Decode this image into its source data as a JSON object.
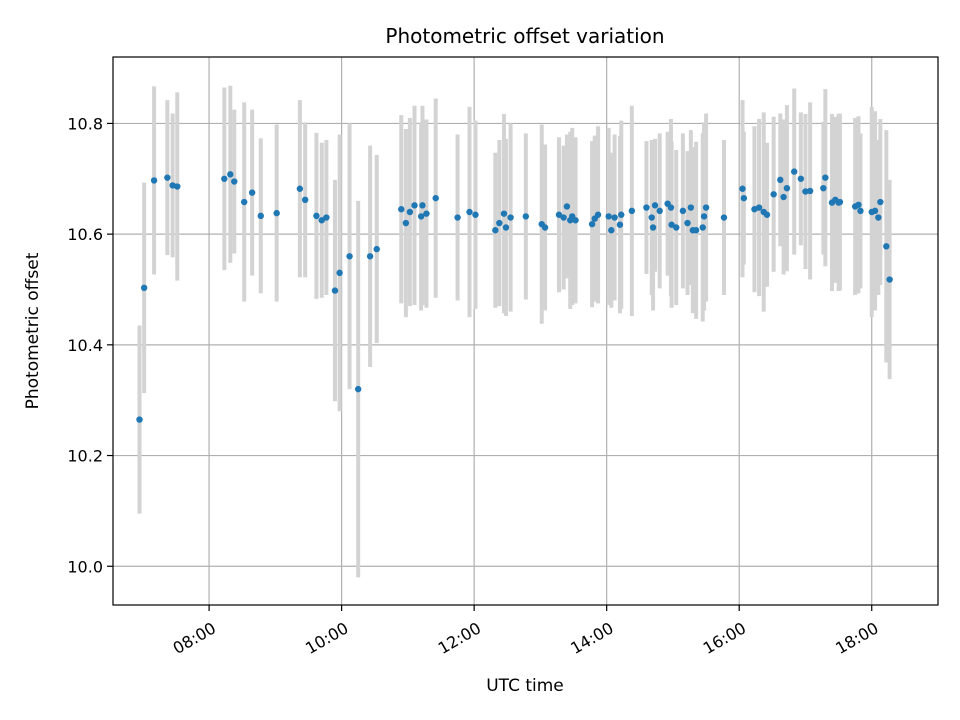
{
  "chart_data": {
    "type": "scatter",
    "title": "Photometric offset variation",
    "xlabel": "UTC time",
    "ylabel": "Photometric offset",
    "x_unit": "hours (UTC)",
    "xlim": [
      6.55,
      19.0
    ],
    "ylim": [
      9.93,
      10.92
    ],
    "grid": true,
    "x_ticks": [
      {
        "value": 8,
        "label": "08:00"
      },
      {
        "value": 10,
        "label": "10:00"
      },
      {
        "value": 12,
        "label": "12:00"
      },
      {
        "value": 14,
        "label": "14:00"
      },
      {
        "value": 16,
        "label": "16:00"
      },
      {
        "value": 18,
        "label": "18:00"
      }
    ],
    "y_ticks": [
      {
        "value": 10.0,
        "label": "10.0"
      },
      {
        "value": 10.2,
        "label": "10.2"
      },
      {
        "value": 10.4,
        "label": "10.4"
      },
      {
        "value": 10.6,
        "label": "10.6"
      },
      {
        "value": 10.8,
        "label": "10.8"
      }
    ],
    "colors": {
      "point": "#1f77b4",
      "errorbar": "#d3d3d3",
      "grid": "#b0b0b0"
    },
    "points": [
      [
        6.95,
        10.265,
        0.17
      ],
      [
        7.02,
        10.503,
        0.19
      ],
      [
        7.17,
        10.697,
        0.17
      ],
      [
        7.37,
        10.702,
        0.14
      ],
      [
        7.45,
        10.688,
        0.13
      ],
      [
        7.52,
        10.686,
        0.17
      ],
      [
        8.23,
        10.7,
        0.165
      ],
      [
        8.32,
        10.708,
        0.16
      ],
      [
        8.38,
        10.695,
        0.13
      ],
      [
        8.53,
        10.658,
        0.18
      ],
      [
        8.65,
        10.675,
        0.15
      ],
      [
        8.78,
        10.633,
        0.14
      ],
      [
        9.02,
        10.638,
        0.16
      ],
      [
        9.37,
        10.682,
        0.16
      ],
      [
        9.45,
        10.662,
        0.14
      ],
      [
        9.62,
        10.633,
        0.15
      ],
      [
        9.7,
        10.625,
        0.14
      ],
      [
        9.77,
        10.63,
        0.14
      ],
      [
        9.9,
        10.498,
        0.2
      ],
      [
        9.97,
        10.53,
        0.25
      ],
      [
        10.12,
        10.56,
        0.24
      ],
      [
        10.25,
        10.32,
        0.34
      ],
      [
        10.43,
        10.56,
        0.2
      ],
      [
        10.53,
        10.573,
        0.17
      ],
      [
        10.9,
        10.645,
        0.17
      ],
      [
        10.97,
        10.62,
        0.17
      ],
      [
        11.03,
        10.64,
        0.17
      ],
      [
        11.1,
        10.652,
        0.18
      ],
      [
        11.22,
        10.652,
        0.18
      ],
      [
        11.2,
        10.632,
        0.17
      ],
      [
        11.28,
        10.637,
        0.17
      ],
      [
        11.42,
        10.665,
        0.18
      ],
      [
        11.75,
        10.63,
        0.15
      ],
      [
        11.93,
        10.64,
        0.19
      ],
      [
        12.02,
        10.635,
        0.17
      ],
      [
        12.32,
        10.607,
        0.14
      ],
      [
        12.38,
        10.62,
        0.15
      ],
      [
        12.45,
        10.637,
        0.18
      ],
      [
        12.48,
        10.612,
        0.16
      ],
      [
        12.55,
        10.63,
        0.17
      ],
      [
        12.78,
        10.632,
        0.15
      ],
      [
        13.02,
        10.618,
        0.18
      ],
      [
        13.07,
        10.612,
        0.15
      ],
      [
        13.28,
        10.635,
        0.14
      ],
      [
        13.35,
        10.63,
        0.13
      ],
      [
        13.4,
        10.65,
        0.13
      ],
      [
        13.45,
        10.625,
        0.16
      ],
      [
        13.48,
        10.632,
        0.16
      ],
      [
        13.53,
        10.625,
        0.15
      ],
      [
        13.78,
        10.618,
        0.15
      ],
      [
        13.82,
        10.628,
        0.15
      ],
      [
        13.87,
        10.635,
        0.16
      ],
      [
        14.03,
        10.632,
        0.16
      ],
      [
        14.07,
        10.607,
        0.14
      ],
      [
        14.12,
        10.63,
        0.15
      ],
      [
        14.2,
        10.617,
        0.16
      ],
      [
        14.22,
        10.635,
        0.17
      ],
      [
        14.38,
        10.642,
        0.19
      ],
      [
        14.6,
        10.648,
        0.12
      ],
      [
        14.68,
        10.63,
        0.14
      ],
      [
        14.7,
        10.612,
        0.15
      ],
      [
        14.73,
        10.652,
        0.12
      ],
      [
        14.8,
        10.642,
        0.14
      ],
      [
        14.92,
        10.655,
        0.13
      ],
      [
        14.97,
        10.648,
        0.16
      ],
      [
        14.98,
        10.617,
        0.15
      ],
      [
        15.05,
        10.612,
        0.14
      ],
      [
        15.15,
        10.642,
        0.14
      ],
      [
        15.22,
        10.62,
        0.13
      ],
      [
        15.27,
        10.648,
        0.14
      ],
      [
        15.3,
        10.607,
        0.15
      ],
      [
        15.35,
        10.607,
        0.16
      ],
      [
        15.45,
        10.612,
        0.17
      ],
      [
        15.47,
        10.632,
        0.17
      ],
      [
        15.5,
        10.648,
        0.17
      ],
      [
        15.77,
        10.63,
        0.14
      ],
      [
        16.05,
        10.682,
        0.16
      ],
      [
        16.07,
        10.665,
        0.12
      ],
      [
        16.23,
        10.645,
        0.15
      ],
      [
        16.3,
        10.648,
        0.16
      ],
      [
        16.37,
        10.64,
        0.18
      ],
      [
        16.42,
        10.635,
        0.13
      ],
      [
        16.52,
        10.672,
        0.14
      ],
      [
        16.62,
        10.698,
        0.12
      ],
      [
        16.67,
        10.667,
        0.14
      ],
      [
        16.72,
        10.683,
        0.15
      ],
      [
        16.83,
        10.713,
        0.15
      ],
      [
        16.93,
        10.7,
        0.12
      ],
      [
        17.0,
        10.677,
        0.14
      ],
      [
        17.07,
        10.678,
        0.16
      ],
      [
        17.3,
        10.702,
        0.16
      ],
      [
        17.27,
        10.683,
        0.12
      ],
      [
        17.4,
        10.657,
        0.16
      ],
      [
        17.45,
        10.662,
        0.15
      ],
      [
        17.5,
        10.657,
        0.16
      ],
      [
        17.52,
        10.658,
        0.16
      ],
      [
        17.75,
        10.65,
        0.16
      ],
      [
        17.8,
        10.653,
        0.16
      ],
      [
        17.83,
        10.642,
        0.14
      ],
      [
        18.0,
        10.64,
        0.19
      ],
      [
        18.05,
        10.642,
        0.18
      ],
      [
        18.1,
        10.63,
        0.14
      ],
      [
        18.13,
        10.658,
        0.15
      ],
      [
        18.22,
        10.578,
        0.21
      ],
      [
        18.27,
        10.518,
        0.18
      ]
    ]
  }
}
